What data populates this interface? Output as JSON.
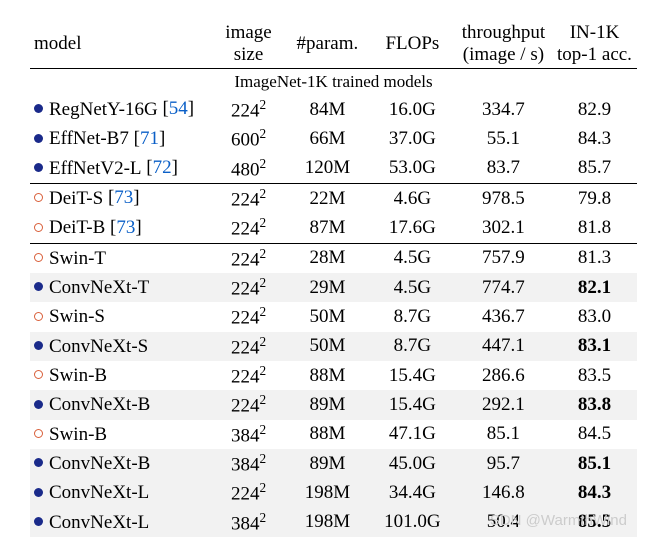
{
  "headers": {
    "model": "model",
    "image_size": "image\nsize",
    "params": "#param.",
    "flops": "FLOPs",
    "throughput": "throughput\n(image / s)",
    "acc": "IN-1K\ntop-1 acc."
  },
  "section_label": "ImageNet-1K trained models",
  "bullet_filled_color": "#1a2a8a",
  "bullet_open_color": "#d9603b",
  "ref_color": "#0a5fc7",
  "shade_color": "#f2f2f2",
  "rows": [
    {
      "bullet": "filled",
      "name": "RegNetY-16G",
      "ref": "54",
      "size": "224",
      "params": "84M",
      "flops": "16.0G",
      "tp": "334.7",
      "acc": "82.9",
      "bold": false,
      "shaded": false,
      "div": false
    },
    {
      "bullet": "filled",
      "name": "EffNet-B7",
      "ref": "71",
      "size": "600",
      "params": "66M",
      "flops": "37.0G",
      "tp": "55.1",
      "acc": "84.3",
      "bold": false,
      "shaded": false,
      "div": false
    },
    {
      "bullet": "filled",
      "name": "EffNetV2-L",
      "ref": "72",
      "size": "480",
      "params": "120M",
      "flops": "53.0G",
      "tp": "83.7",
      "acc": "85.7",
      "bold": false,
      "shaded": false,
      "div": false
    },
    {
      "bullet": "open",
      "name": "DeiT-S",
      "ref": "73",
      "size": "224",
      "params": "22M",
      "flops": "4.6G",
      "tp": "978.5",
      "acc": "79.8",
      "bold": false,
      "shaded": false,
      "div": true
    },
    {
      "bullet": "open",
      "name": "DeiT-B",
      "ref": "73",
      "size": "224",
      "params": "87M",
      "flops": "17.6G",
      "tp": "302.1",
      "acc": "81.8",
      "bold": false,
      "shaded": false,
      "div": false
    },
    {
      "bullet": "open",
      "name": "Swin-T",
      "ref": "",
      "size": "224",
      "params": "28M",
      "flops": "4.5G",
      "tp": "757.9",
      "acc": "81.3",
      "bold": false,
      "shaded": false,
      "div": true
    },
    {
      "bullet": "filled",
      "name": "ConvNeXt-T",
      "ref": "",
      "size": "224",
      "params": "29M",
      "flops": "4.5G",
      "tp": "774.7",
      "acc": "82.1",
      "bold": true,
      "shaded": true,
      "div": false
    },
    {
      "bullet": "open",
      "name": "Swin-S",
      "ref": "",
      "size": "224",
      "params": "50M",
      "flops": "8.7G",
      "tp": "436.7",
      "acc": "83.0",
      "bold": false,
      "shaded": false,
      "div": false
    },
    {
      "bullet": "filled",
      "name": "ConvNeXt-S",
      "ref": "",
      "size": "224",
      "params": "50M",
      "flops": "8.7G",
      "tp": "447.1",
      "acc": "83.1",
      "bold": true,
      "shaded": true,
      "div": false
    },
    {
      "bullet": "open",
      "name": "Swin-B",
      "ref": "",
      "size": "224",
      "params": "88M",
      "flops": "15.4G",
      "tp": "286.6",
      "acc": "83.5",
      "bold": false,
      "shaded": false,
      "div": false
    },
    {
      "bullet": "filled",
      "name": "ConvNeXt-B",
      "ref": "",
      "size": "224",
      "params": "89M",
      "flops": "15.4G",
      "tp": "292.1",
      "acc": "83.8",
      "bold": true,
      "shaded": true,
      "div": false
    },
    {
      "bullet": "open",
      "name": "Swin-B",
      "ref": "",
      "size": "384",
      "params": "88M",
      "flops": "47.1G",
      "tp": "85.1",
      "acc": "84.5",
      "bold": false,
      "shaded": false,
      "div": false
    },
    {
      "bullet": "filled",
      "name": "ConvNeXt-B",
      "ref": "",
      "size": "384",
      "params": "89M",
      "flops": "45.0G",
      "tp": "95.7",
      "acc": "85.1",
      "bold": true,
      "shaded": true,
      "div": false
    },
    {
      "bullet": "filled",
      "name": "ConvNeXt-L",
      "ref": "",
      "size": "224",
      "params": "198M",
      "flops": "34.4G",
      "tp": "146.8",
      "acc": "84.3",
      "bold": true,
      "shaded": true,
      "div": false
    },
    {
      "bullet": "filled",
      "name": "ConvNeXt-L",
      "ref": "",
      "size": "384",
      "params": "198M",
      "flops": "101.0G",
      "tp": "50.4",
      "acc": "85.5",
      "bold": true,
      "shaded": true,
      "div": false
    }
  ],
  "watermark": "SDN @WarmthWind"
}
